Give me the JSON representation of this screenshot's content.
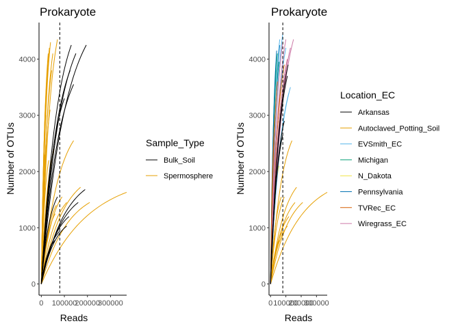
{
  "chart_data": [
    {
      "type": "line",
      "title": "Prokaryote",
      "xlabel": "Reads",
      "ylabel": "Number of OTUs",
      "xlim": [
        -10000,
        370000
      ],
      "ylim": [
        -200,
        4650
      ],
      "x_ticks": [
        0,
        100000,
        200000,
        300000
      ],
      "x_tick_labels": [
        "0",
        "100000",
        "200000",
        "300000"
      ],
      "y_ticks": [
        0,
        1000,
        2000,
        3000,
        4000
      ],
      "y_tick_labels": [
        "0",
        "1000",
        "2000",
        "3000",
        "4000"
      ],
      "vline_x": 80000,
      "grid": false,
      "legend": {
        "title": "Sample_Type",
        "position": "right",
        "entries": [
          {
            "label": "Bulk_Soil",
            "color": "#000000"
          },
          {
            "label": "Spermosphere",
            "color": "#E69F00"
          }
        ]
      },
      "series": [
        {
          "name": "Spermosphere",
          "color": "#E69F00",
          "curves": [
            {
              "x": 10000,
              "y": 1250
            },
            {
              "x": 15000,
              "y": 2300
            },
            {
              "x": 20000,
              "y": 3000
            },
            {
              "x": 25000,
              "y": 3650
            },
            {
              "x": 28000,
              "y": 3900
            },
            {
              "x": 30000,
              "y": 4100
            },
            {
              "x": 32000,
              "y": 2200
            },
            {
              "x": 35000,
              "y": 4200
            },
            {
              "x": 38000,
              "y": 3100
            },
            {
              "x": 40000,
              "y": 4300
            },
            {
              "x": 45000,
              "y": 3800
            },
            {
              "x": 50000,
              "y": 4100
            },
            {
              "x": 55000,
              "y": 2400
            },
            {
              "x": 60000,
              "y": 1250
            },
            {
              "x": 65000,
              "y": 1400
            },
            {
              "x": 70000,
              "y": 4350
            },
            {
              "x": 90000,
              "y": 1550
            },
            {
              "x": 110000,
              "y": 1450
            },
            {
              "x": 140000,
              "y": 2550
            },
            {
              "x": 170000,
              "y": 1720
            },
            {
              "x": 210000,
              "y": 1450
            },
            {
              "x": 370000,
              "y": 1630
            }
          ]
        },
        {
          "name": "Bulk_Soil",
          "color": "#000000",
          "curves": [
            {
              "x": 60000,
              "y": 780
            },
            {
              "x": 70000,
              "y": 1550
            },
            {
              "x": 80000,
              "y": 940
            },
            {
              "x": 100000,
              "y": 3300
            },
            {
              "x": 110000,
              "y": 1030
            },
            {
              "x": 120000,
              "y": 1200
            },
            {
              "x": 125000,
              "y": 3800
            },
            {
              "x": 130000,
              "y": 4250
            },
            {
              "x": 140000,
              "y": 3550
            },
            {
              "x": 150000,
              "y": 4100
            },
            {
              "x": 160000,
              "y": 1450
            },
            {
              "x": 190000,
              "y": 1680
            },
            {
              "x": 195000,
              "y": 4250
            }
          ]
        }
      ]
    },
    {
      "type": "line",
      "title": "Prokaryote",
      "xlabel": "Reads",
      "ylabel": "Number of OTUs",
      "xlim": [
        -10000,
        370000
      ],
      "ylim": [
        -200,
        4650
      ],
      "x_ticks": [
        0,
        100000,
        200000,
        300000
      ],
      "x_tick_labels": [
        "0",
        "100000",
        "200000",
        "300000"
      ],
      "y_ticks": [
        0,
        1000,
        2000,
        3000,
        4000
      ],
      "y_tick_labels": [
        "0",
        "1000",
        "2000",
        "3000",
        "4000"
      ],
      "vline_x": 80000,
      "grid": false,
      "legend": {
        "title": "Location_EC",
        "position": "right",
        "entries": [
          {
            "label": "Arkansas",
            "color": "#000000"
          },
          {
            "label": "Autoclaved_Potting_Soil",
            "color": "#E69F00"
          },
          {
            "label": "EVSmith_EC",
            "color": "#56B4E9"
          },
          {
            "label": "Michigan",
            "color": "#009E73"
          },
          {
            "label": "N_Dakota",
            "color": "#F0E442"
          },
          {
            "label": "Pennsylvania",
            "color": "#0072B2"
          },
          {
            "label": "TVRec_EC",
            "color": "#D55E00"
          },
          {
            "label": "Wiregrass_EC",
            "color": "#CC79A7"
          }
        ]
      },
      "series": [
        {
          "name": "Autoclaved_Potting_Soil",
          "color": "#E69F00",
          "curves": [
            {
              "x": 60000,
              "y": 780
            },
            {
              "x": 70000,
              "y": 1550
            },
            {
              "x": 80000,
              "y": 940
            },
            {
              "x": 90000,
              "y": 1550
            },
            {
              "x": 110000,
              "y": 1030
            },
            {
              "x": 120000,
              "y": 1200
            },
            {
              "x": 140000,
              "y": 2550
            },
            {
              "x": 160000,
              "y": 1450
            },
            {
              "x": 170000,
              "y": 1720
            },
            {
              "x": 210000,
              "y": 1450
            },
            {
              "x": 370000,
              "y": 1630
            }
          ]
        },
        {
          "name": "N_Dakota",
          "color": "#F0E442",
          "curves": [
            {
              "x": 25000,
              "y": 1900
            },
            {
              "x": 30000,
              "y": 2500
            },
            {
              "x": 40000,
              "y": 2300
            },
            {
              "x": 50000,
              "y": 2900
            },
            {
              "x": 55000,
              "y": 2100
            }
          ]
        },
        {
          "name": "Michigan",
          "color": "#009E73",
          "curves": [
            {
              "x": 35000,
              "y": 3800
            },
            {
              "x": 45000,
              "y": 4100
            },
            {
              "x": 55000,
              "y": 3950
            }
          ]
        },
        {
          "name": "Pennsylvania",
          "color": "#0072B2",
          "curves": [
            {
              "x": 40000,
              "y": 4150
            },
            {
              "x": 60000,
              "y": 4250
            }
          ]
        },
        {
          "name": "EVSmith_EC",
          "color": "#56B4E9",
          "curves": [
            {
              "x": 60000,
              "y": 4350
            },
            {
              "x": 80000,
              "y": 4450
            },
            {
              "x": 100000,
              "y": 4200
            },
            {
              "x": 130000,
              "y": 3500
            },
            {
              "x": 120000,
              "y": 3400
            }
          ]
        },
        {
          "name": "TVRec_EC",
          "color": "#D55E00",
          "curves": [
            {
              "x": 30000,
              "y": 3000
            },
            {
              "x": 45000,
              "y": 3600
            },
            {
              "x": 70000,
              "y": 3500
            },
            {
              "x": 90000,
              "y": 3900
            },
            {
              "x": 110000,
              "y": 4000
            }
          ]
        },
        {
          "name": "Wiregrass_EC",
          "color": "#CC79A7",
          "curves": [
            {
              "x": 80000,
              "y": 4300
            },
            {
              "x": 100000,
              "y": 4350
            },
            {
              "x": 110000,
              "y": 4000
            },
            {
              "x": 130000,
              "y": 4200
            },
            {
              "x": 150000,
              "y": 4350
            }
          ]
        },
        {
          "name": "Arkansas",
          "color": "#000000",
          "curves": [
            {
              "x": 20000,
              "y": 1150
            },
            {
              "x": 80000,
              "y": 2650
            },
            {
              "x": 90000,
              "y": 2900
            },
            {
              "x": 110000,
              "y": 3700
            },
            {
              "x": 115000,
              "y": 3900
            }
          ]
        }
      ]
    }
  ]
}
